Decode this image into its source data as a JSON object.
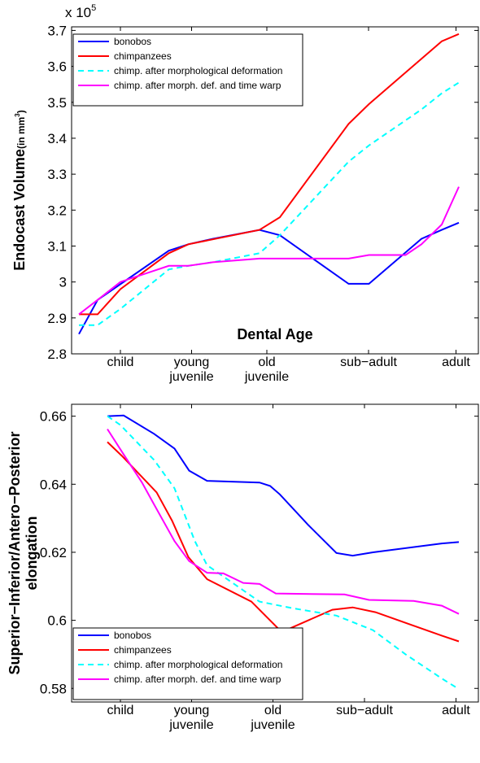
{
  "chart_data": [
    {
      "type": "line",
      "xlabel": "Dental Age",
      "ylabel": "Endocast Volume",
      "ylabel_unit": [
        "(in mm",
        "3",
        ")"
      ],
      "y_multiplier": {
        "base": "x 10",
        "exponent": "5"
      },
      "xlim": [
        0,
        10
      ],
      "ylim": [
        2.8,
        3.71
      ],
      "xticks": [
        {
          "value": 1.2,
          "label": "child"
        },
        {
          "value": 2.95,
          "label": "young\njuvenile"
        },
        {
          "value": 4.8,
          "label": "old\njuvenile"
        },
        {
          "value": 7.3,
          "label": "sub−adult"
        },
        {
          "value": 9.45,
          "label": "adult"
        }
      ],
      "yticks": [
        2.8,
        2.9,
        3,
        3.1,
        3.2,
        3.3,
        3.4,
        3.5,
        3.6,
        3.7
      ],
      "legend": "upper left",
      "series": [
        {
          "name": "bonobos",
          "color": "#0000ff",
          "linestyle": "solid",
          "x": [
            0.18,
            0.64,
            2.39,
            2.87,
            3.47,
            4.62,
            5.12,
            6.81,
            7.31,
            8.6,
            9.1,
            9.52
          ],
          "values": [
            2.855,
            2.95,
            3.087,
            3.105,
            3.12,
            3.145,
            3.13,
            2.995,
            2.995,
            3.12,
            3.145,
            3.165
          ]
        },
        {
          "name": "chimpanzees",
          "color": "#ff0000",
          "linestyle": "solid",
          "x": [
            0.18,
            0.64,
            1.2,
            2.39,
            2.87,
            4.62,
            5.12,
            6.81,
            7.31,
            9.1,
            9.52
          ],
          "values": [
            2.91,
            2.91,
            2.98,
            3.08,
            3.105,
            3.145,
            3.18,
            3.44,
            3.495,
            3.67,
            3.69
          ]
        },
        {
          "name": "chimp. after morphological deformation",
          "color": "#00ffff",
          "linestyle": "dashed",
          "x": [
            0.18,
            0.64,
            1.2,
            2.39,
            2.87,
            3.47,
            4.62,
            5.12,
            6.81,
            7.31,
            8.6,
            9.1,
            9.52
          ],
          "values": [
            2.88,
            2.88,
            2.925,
            3.035,
            3.045,
            3.055,
            3.08,
            3.13,
            3.335,
            3.38,
            3.48,
            3.525,
            3.555
          ]
        },
        {
          "name": "chimp. after morph. def. and time warp",
          "color": "#ff00ff",
          "linestyle": "solid",
          "x": [
            0.18,
            0.64,
            1.2,
            2.39,
            2.87,
            3.47,
            4.62,
            5.12,
            6.81,
            7.31,
            8.21,
            8.6,
            9.1,
            9.52
          ],
          "values": [
            2.91,
            2.95,
            3.0,
            3.045,
            3.045,
            3.055,
            3.065,
            3.065,
            3.065,
            3.075,
            3.075,
            3.105,
            3.16,
            3.265
          ]
        }
      ]
    },
    {
      "type": "line",
      "ylabel": [
        "Superior−Inferior/Antero−Posterior",
        "elongation"
      ],
      "xlim": [
        0,
        10
      ],
      "ylim": [
        0.576,
        0.6635
      ],
      "xticks": [
        {
          "value": 1.2,
          "label": "child"
        },
        {
          "value": 2.95,
          "label": "young\njuvenile"
        },
        {
          "value": 4.95,
          "label": "old\njuvenile"
        },
        {
          "value": 7.2,
          "label": "sub−adult"
        },
        {
          "value": 9.45,
          "label": "adult"
        }
      ],
      "yticks": [
        0.58,
        0.6,
        0.62,
        0.64,
        0.66
      ],
      "legend": "lower left",
      "series": [
        {
          "name": "bonobos",
          "color": "#0000ff",
          "linestyle": "solid",
          "x": [
            0.88,
            1.28,
            2.03,
            2.53,
            2.89,
            3.33,
            4.62,
            4.88,
            5.12,
            5.82,
            6.51,
            6.91,
            7.41,
            9.1,
            9.52
          ],
          "values": [
            0.66,
            0.6602,
            0.6548,
            0.6505,
            0.644,
            0.641,
            0.6405,
            0.6395,
            0.637,
            0.628,
            0.6198,
            0.619,
            0.62,
            0.6226,
            0.623
          ]
        },
        {
          "name": "chimpanzees",
          "color": "#ff0000",
          "linestyle": "solid",
          "x": [
            0.88,
            1.24,
            2.09,
            2.47,
            2.87,
            3.33,
            4.42,
            5.08,
            5.36,
            6.41,
            6.91,
            7.47,
            9.1,
            9.52
          ],
          "values": [
            0.6524,
            0.6483,
            0.6376,
            0.6293,
            0.6186,
            0.6121,
            0.6055,
            0.5976,
            0.5976,
            0.6031,
            0.6038,
            0.6024,
            0.5955,
            0.5938
          ]
        },
        {
          "name": "chimp. after morphological deformation",
          "color": "#00ffff",
          "linestyle": "dashed",
          "x": [
            0.88,
            1.2,
            2.03,
            2.53,
            3.03,
            3.33,
            4.62,
            5.42,
            6.51,
            7.41,
            8.21,
            9.1,
            9.52
          ],
          "values": [
            0.66,
            0.6574,
            0.6471,
            0.6388,
            0.6233,
            0.6162,
            0.6055,
            0.6036,
            0.6014,
            0.5971,
            0.59,
            0.5829,
            0.5798
          ]
        },
        {
          "name": "chimp. after morph. def. and time warp",
          "color": "#ff00ff",
          "linestyle": "solid",
          "x": [
            0.88,
            1.24,
            1.73,
            2.03,
            2.53,
            2.89,
            3.33,
            3.73,
            4.22,
            4.62,
            5.02,
            6.71,
            7.31,
            8.41,
            9.1,
            9.52
          ],
          "values": [
            0.6562,
            0.6495,
            0.6405,
            0.634,
            0.6233,
            0.6174,
            0.614,
            0.6138,
            0.611,
            0.6107,
            0.6079,
            0.6076,
            0.606,
            0.6057,
            0.6043,
            0.6019
          ]
        }
      ]
    }
  ]
}
